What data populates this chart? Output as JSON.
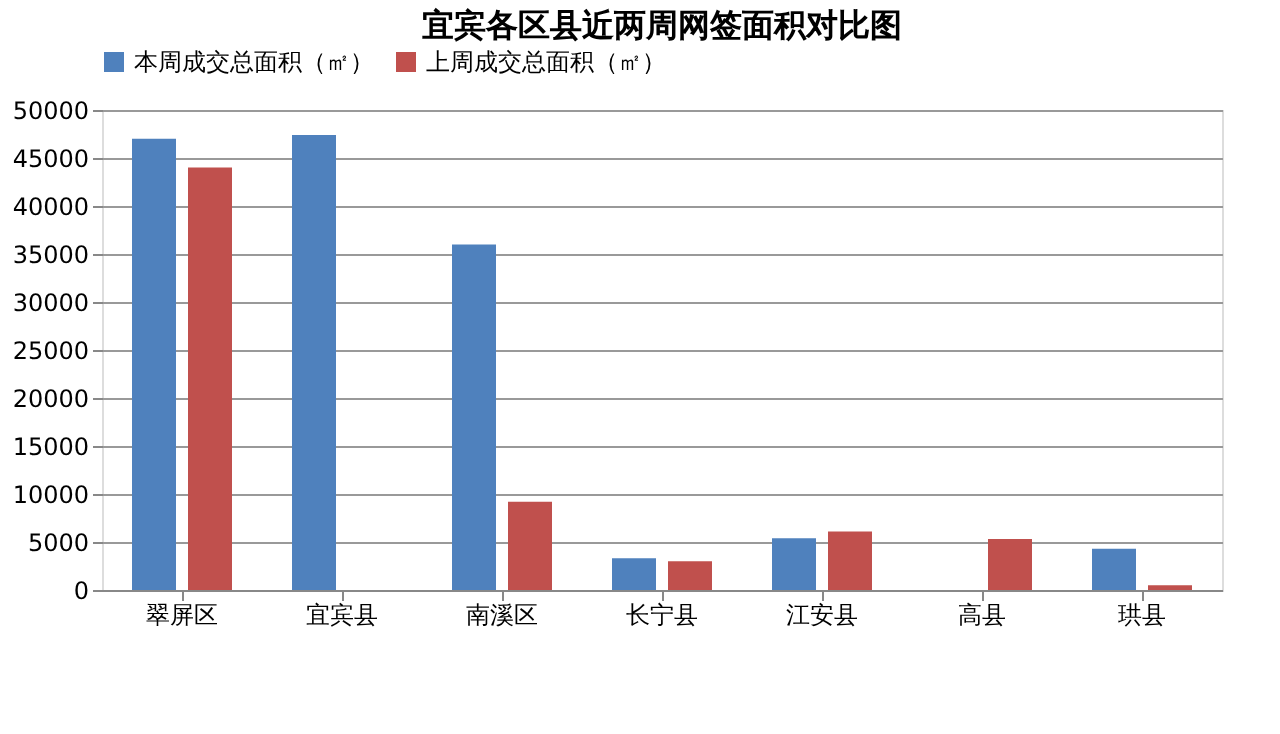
{
  "chart_data": {
    "type": "bar",
    "title": "宜宾各区县近两周网签面积对比图",
    "categories": [
      "翠屏区",
      "宜宾县",
      "南溪区",
      "长宁县",
      "江安县",
      "高县",
      "珙县"
    ],
    "series": [
      {
        "name": "本周成交总面积（㎡）",
        "color": "#4f81bd",
        "values": [
          47000,
          47400,
          36000,
          3300,
          5400,
          null,
          4300
        ]
      },
      {
        "name": "上周成交总面积（㎡）",
        "color": "#c0504d",
        "values": [
          44000,
          0,
          9200,
          3000,
          6100,
          5300,
          500
        ]
      }
    ],
    "ylim": [
      0,
      50000
    ],
    "yticks": [
      0,
      5000,
      10000,
      15000,
      20000,
      25000,
      30000,
      35000,
      40000,
      45000,
      50000
    ],
    "grid": "y",
    "legend": "top"
  }
}
